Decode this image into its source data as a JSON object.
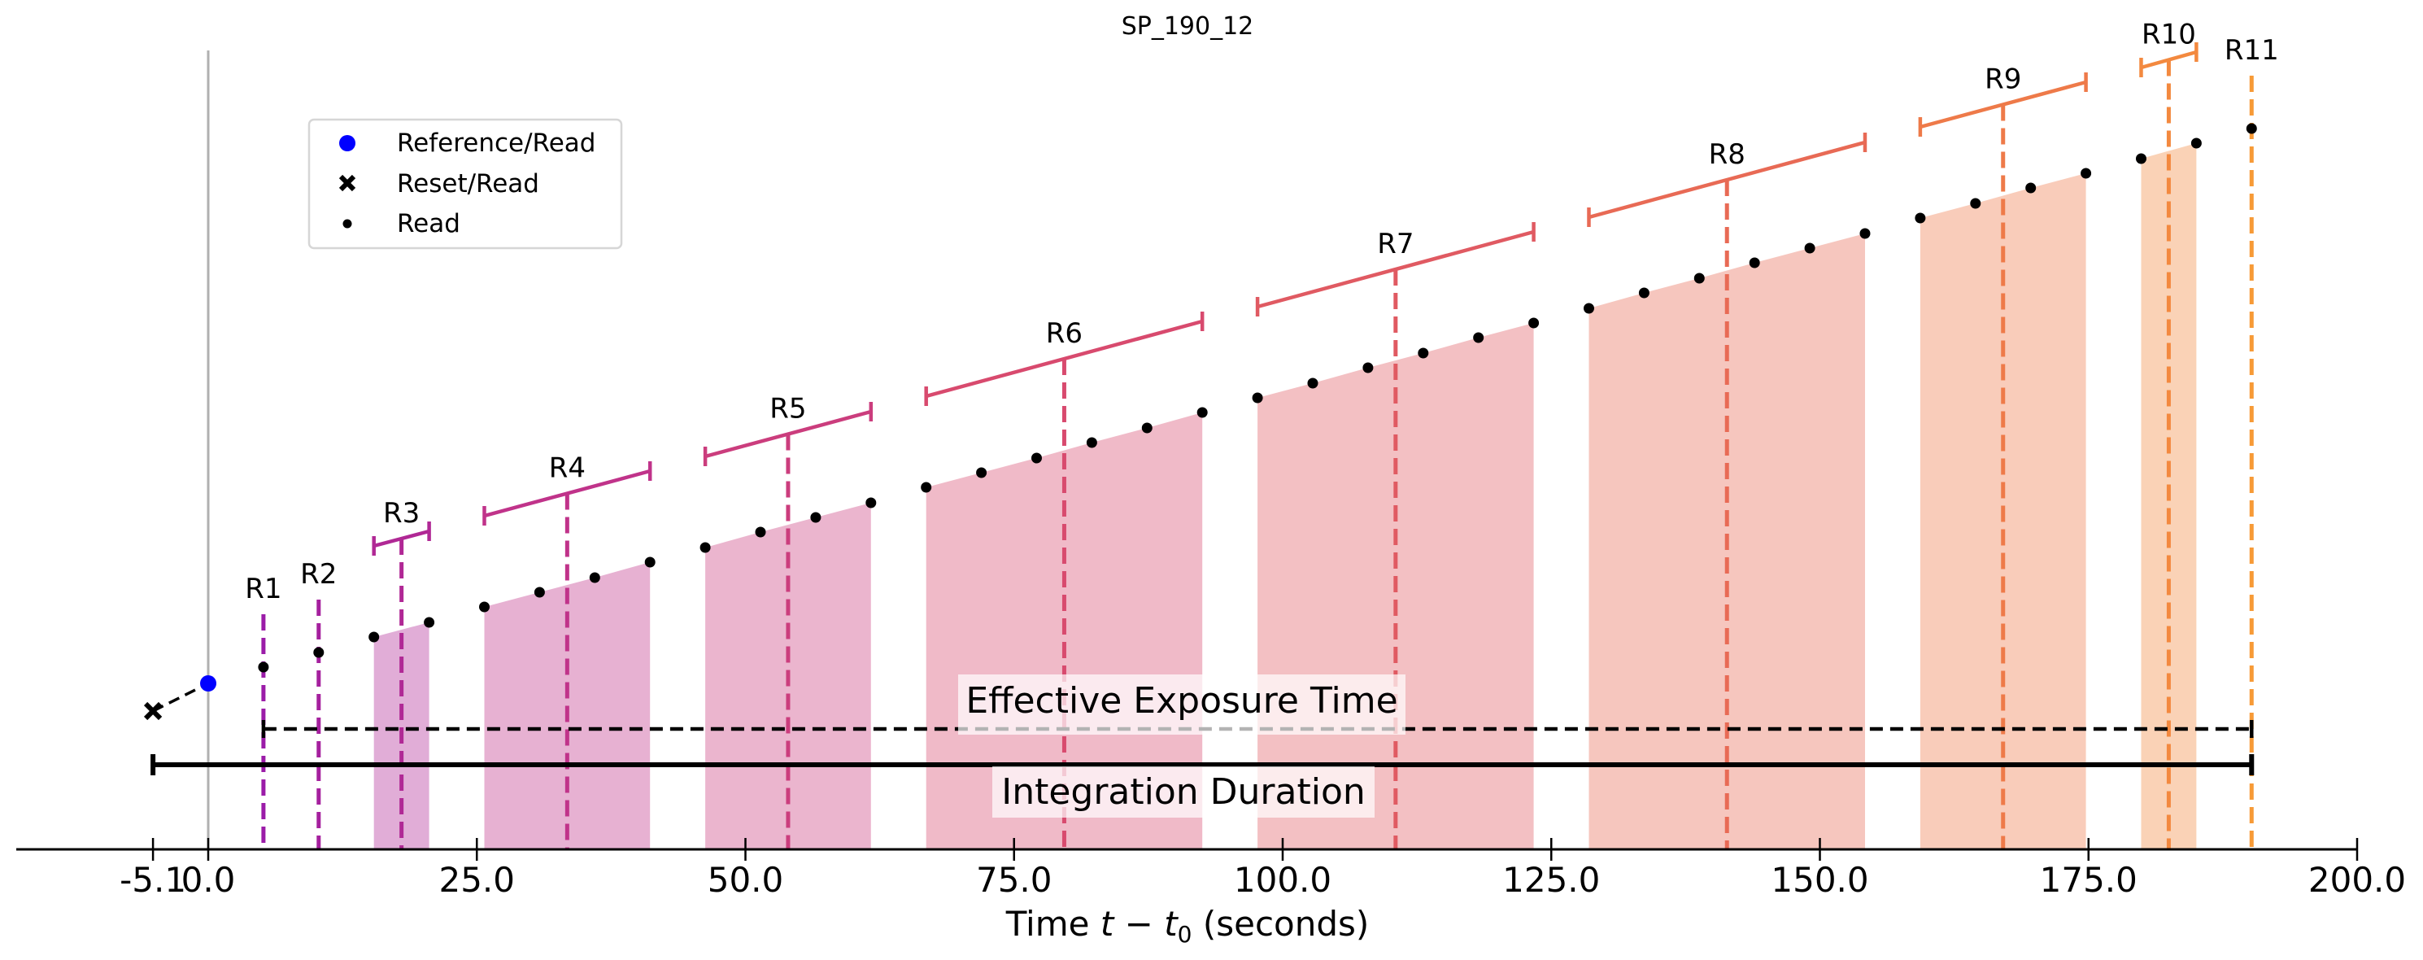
{
  "chart_data": {
    "type": "scatter",
    "title": "SP_190_12",
    "xlabel": "Time t − t₀ (seconds)",
    "xlabel_parts": {
      "prefix": "Time ",
      "t": "t",
      "minus": " − ",
      "t0_base": "t",
      "t0_sub": "0",
      "suffix": " (seconds)"
    },
    "ylabel": "",
    "xlim": [
      -10,
      200
    ],
    "y_axis_visible": false,
    "grid": false,
    "x_ticks": [
      -5.1,
      0.0,
      25.0,
      50.0,
      75.0,
      100.0,
      125.0,
      150.0,
      175.0,
      200.0
    ],
    "x_tick_labels": [
      "-5.1",
      "0.0",
      "25.0",
      "50.0",
      "75.0",
      "100.0",
      "125.0",
      "150.0",
      "175.0",
      "200.0"
    ],
    "frame_time": 5.14,
    "legend": {
      "placement": "upper-left",
      "entries": [
        {
          "label": "Reference/Read",
          "marker": "circle",
          "color": "#0000ff"
        },
        {
          "label": "Reset/Read",
          "marker": "x",
          "color": "#000000"
        },
        {
          "label": "Read",
          "marker": "dot",
          "color": "#000000"
        }
      ]
    },
    "reset_read": {
      "t": -5.14,
      "signal": 170
    },
    "reference_read": {
      "t": 0.0,
      "signal": 204
    },
    "reference_line_color": "#b0b0b0",
    "groups": [
      {
        "label": "R1",
        "color": "#9b1ca8",
        "reads": [
          [
            5.14,
            224
          ]
        ]
      },
      {
        "label": "R2",
        "color": "#a5209e",
        "reads": [
          [
            10.28,
            242
          ]
        ]
      },
      {
        "label": "R3",
        "color": "#b02895",
        "reads": [
          [
            15.42,
            261
          ],
          [
            20.56,
            279
          ]
        ]
      },
      {
        "label": "R4",
        "color": "#c0338a",
        "reads": [
          [
            25.7,
            298
          ],
          [
            30.84,
            316
          ],
          [
            35.98,
            334
          ],
          [
            41.12,
            353
          ]
        ]
      },
      {
        "label": "R5",
        "color": "#cb3d7d",
        "reads": [
          [
            46.26,
            371
          ],
          [
            51.4,
            390
          ],
          [
            56.54,
            408
          ],
          [
            61.68,
            426
          ]
        ]
      },
      {
        "label": "R6",
        "color": "#d84a6e",
        "reads": [
          [
            66.82,
            445
          ],
          [
            71.96,
            463
          ],
          [
            77.1,
            481
          ],
          [
            82.24,
            500
          ],
          [
            87.38,
            518
          ],
          [
            92.52,
            537
          ]
        ]
      },
      {
        "label": "R7",
        "color": "#e05a62",
        "reads": [
          [
            97.66,
            555
          ],
          [
            102.8,
            573
          ],
          [
            107.94,
            592
          ],
          [
            113.08,
            610
          ],
          [
            118.22,
            629
          ],
          [
            123.36,
            647
          ]
        ]
      },
      {
        "label": "R8",
        "color": "#e86a55",
        "reads": [
          [
            128.5,
            665
          ],
          [
            133.64,
            684
          ],
          [
            138.78,
            702
          ],
          [
            143.92,
            721
          ],
          [
            149.06,
            739
          ],
          [
            154.2,
            757
          ]
        ]
      },
      {
        "label": "R9",
        "color": "#ee7a49",
        "reads": [
          [
            159.34,
            776
          ],
          [
            164.48,
            794
          ],
          [
            169.62,
            813
          ],
          [
            174.76,
            831
          ]
        ]
      },
      {
        "label": "R10",
        "color": "#f3893f",
        "reads": [
          [
            179.9,
            849
          ],
          [
            185.04,
            868
          ]
        ]
      },
      {
        "label": "R11",
        "color": "#f79a36",
        "reads": [
          [
            190.18,
            886
          ]
        ]
      }
    ],
    "effective_exposure_time": {
      "label": "Effective Exposure Time",
      "start": 5.14,
      "end": 190.18,
      "style": "dashed"
    },
    "integration_duration": {
      "label": "Integration Duration",
      "start": -5.14,
      "end": 190.18,
      "style": "solid"
    }
  }
}
